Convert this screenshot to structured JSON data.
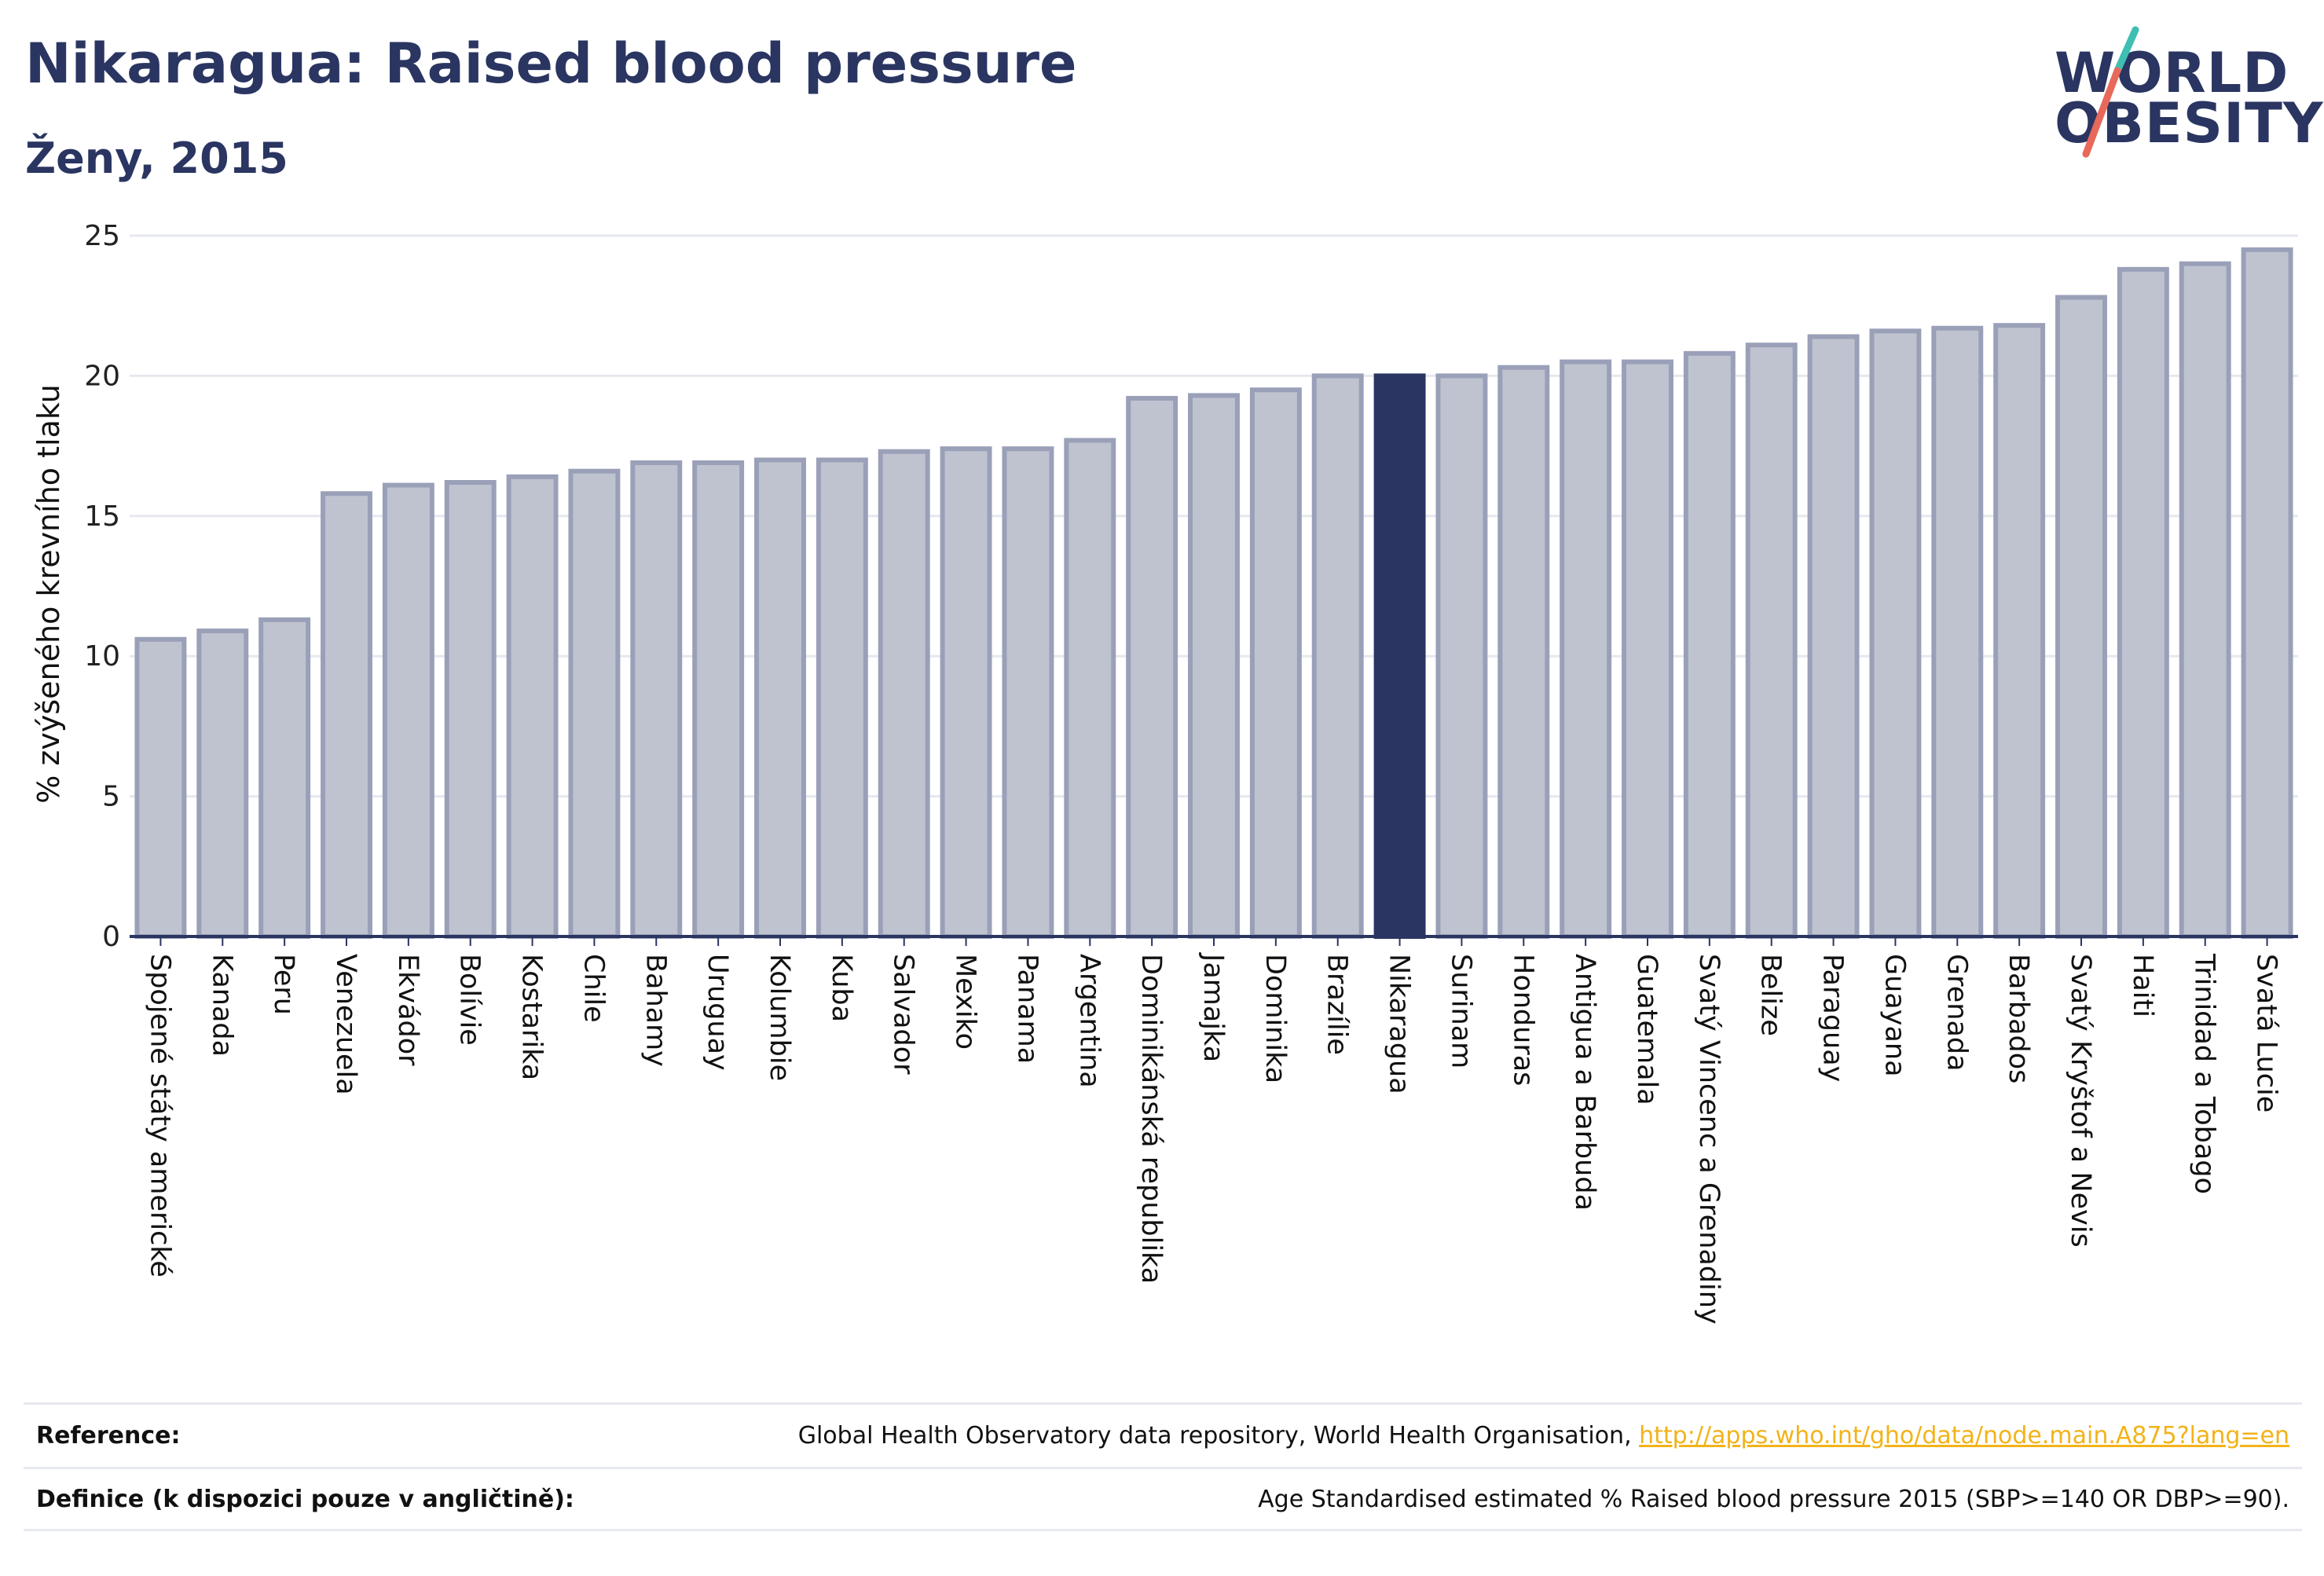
{
  "header": {
    "title": "Nikaragua: Raised blood pressure",
    "subtitle": "Ženy, 2015"
  },
  "logo": {
    "line1": "WORLD",
    "line2": "OBESITY",
    "colors": {
      "text": "#2a3561",
      "slash_top": "#3fbfb2",
      "slash_bottom": "#e8685a"
    }
  },
  "colors": {
    "bar": "#bfc3d0",
    "bar_border": "#9aa0b8",
    "highlight": "#2a3561",
    "grid": "#e6e8ef",
    "axis": "#2a3561",
    "link": "#f2b319"
  },
  "chart_data": {
    "type": "bar",
    "title": "Nikaragua: Raised blood pressure",
    "subtitle": "Ženy, 2015",
    "ylabel": "% zvýšeného krevního tlaku",
    "xlabel": "",
    "ylim": [
      0,
      25
    ],
    "yticks": [
      0,
      5,
      10,
      15,
      20,
      25
    ],
    "grid": true,
    "highlight_category": "Nikaragua",
    "categories": [
      "Spojené státy americké",
      "Kanada",
      "Peru",
      "Venezuela",
      "Ekvádor",
      "Bolívie",
      "Kostarika",
      "Chile",
      "Bahamy",
      "Uruguay",
      "Kolumbie",
      "Kuba",
      "Salvador",
      "Mexiko",
      "Panama",
      "Argentina",
      "Dominikánská republika",
      "Jamajka",
      "Dominika",
      "Brazílie",
      "Nikaragua",
      "Surinam",
      "Honduras",
      "Antigua a Barbuda",
      "Guatemala",
      "Svatý Vincenc a Grenadiny",
      "Belize",
      "Paraguay",
      "Guayana",
      "Grenada",
      "Barbados",
      "Svatý Kryštof a Nevis",
      "Haiti",
      "Trinidad a Tobago",
      "Svatá Lucie"
    ],
    "values": [
      10.6,
      10.9,
      11.3,
      15.8,
      16.1,
      16.2,
      16.4,
      16.6,
      16.9,
      16.9,
      17.0,
      17.0,
      17.3,
      17.4,
      17.4,
      17.7,
      19.2,
      19.3,
      19.5,
      20.0,
      20.0,
      20.0,
      20.3,
      20.5,
      20.5,
      20.8,
      21.1,
      21.4,
      21.6,
      21.7,
      21.8,
      22.8,
      23.8,
      24.0,
      24.5
    ]
  },
  "footer": {
    "reference_label": "Reference:",
    "reference_text": "Global Health Observatory data repository, World Health Organisation, ",
    "reference_link": "http://apps.who.int/gho/data/node.main.A875?lang=en",
    "definition_label": "Definice (k dispozici pouze v angličtině):",
    "definition_text": "Age Standardised estimated % Raised blood pressure 2015 (SBP>=140 OR DBP>=90)."
  }
}
